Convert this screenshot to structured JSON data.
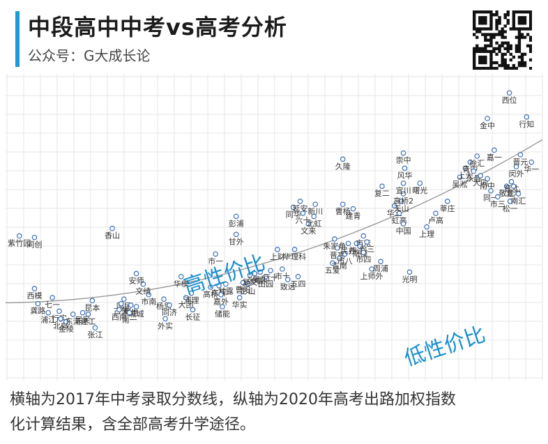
{
  "header": {
    "title": "中段高中中考vs高考分析",
    "subtitle": "公众号：G大成长论"
  },
  "annotations": {
    "high": "高性价比",
    "low": "低性价比"
  },
  "footer": {
    "line1": "横轴为2017年中考录取分数线，纵轴为2020年高考出路加权指数",
    "line2": "化计算结果，含全部高考升学途径。"
  },
  "colors": {
    "accent": "#1a9ad6",
    "point_stroke": "#3d6db5",
    "annotation": "#1a8fcf",
    "trend": "#999999"
  },
  "chart_data": {
    "type": "scatter",
    "trendline": "quadratic",
    "grid": true,
    "points": [
      {
        "x": 20,
        "y": 9.7,
        "label": "紫竹园"
      },
      {
        "x": 42,
        "y": 9.6,
        "label": "同创"
      },
      {
        "x": 155,
        "y": 10.2,
        "label": "香山"
      },
      {
        "x": 42,
        "y": 6.2,
        "label": "西模"
      },
      {
        "x": 68,
        "y": 5.6,
        "label": "七一"
      },
      {
        "x": 47,
        "y": 5.2,
        "label": "龚路"
      },
      {
        "x": 62,
        "y": 4.6,
        "label": "浦江"
      },
      {
        "x": 78,
        "y": 4.7,
        "label": "行实"
      },
      {
        "x": 80,
        "y": 4.2,
        "label": "北郊"
      },
      {
        "x": 88,
        "y": 4.0,
        "label": "金陵"
      },
      {
        "x": 98,
        "y": 4.5,
        "label": "东浦"
      },
      {
        "x": 112,
        "y": 4.6,
        "label": "民民"
      },
      {
        "x": 120,
        "y": 4.5,
        "label": "建工"
      },
      {
        "x": 126,
        "y": 5.4,
        "label": "昆本"
      },
      {
        "x": 130,
        "y": 3.6,
        "label": "张江"
      },
      {
        "x": 172,
        "y": 5.5,
        "label": "国民"
      },
      {
        "x": 168,
        "y": 5.2,
        "label": "古美"
      },
      {
        "x": 182,
        "y": 5.1,
        "label": "曹世"
      },
      {
        "x": 190,
        "y": 5.0,
        "label": "城城"
      },
      {
        "x": 165,
        "y": 4.8,
        "label": "西南"
      },
      {
        "x": 180,
        "y": 4.6,
        "label": "南一"
      },
      {
        "x": 208,
        "y": 5.8,
        "label": "市南"
      },
      {
        "x": 200,
        "y": 6.5,
        "label": "文绮"
      },
      {
        "x": 190,
        "y": 7.2,
        "label": "安师"
      },
      {
        "x": 230,
        "y": 5.5,
        "label": "杨思"
      },
      {
        "x": 238,
        "y": 5.1,
        "label": "同济"
      },
      {
        "x": 232,
        "y": 4.2,
        "label": "外实"
      },
      {
        "x": 255,
        "y": 7.0,
        "label": "华模"
      },
      {
        "x": 262,
        "y": 5.6,
        "label": "大团"
      },
      {
        "x": 270,
        "y": 5.9,
        "label": "浦理"
      },
      {
        "x": 272,
        "y": 4.8,
        "label": "长征"
      },
      {
        "x": 298,
        "y": 6.3,
        "label": "高桥"
      },
      {
        "x": 310,
        "y": 6.4,
        "label": "东辉"
      },
      {
        "x": 320,
        "y": 6.5,
        "label": "甘露"
      },
      {
        "x": 313,
        "y": 5.8,
        "label": "嘉外"
      },
      {
        "x": 315,
        "y": 5.0,
        "label": "储能"
      },
      {
        "x": 340,
        "y": 5.6,
        "label": "华实"
      },
      {
        "x": 345,
        "y": 6.6,
        "label": "曹阳"
      },
      {
        "x": 352,
        "y": 6.5,
        "label": "彭山"
      },
      {
        "x": 355,
        "y": 7.1,
        "label": "复交"
      },
      {
        "x": 362,
        "y": 7.2,
        "label": "张堰"
      },
      {
        "x": 370,
        "y": 7.3,
        "label": "复装"
      },
      {
        "x": 378,
        "y": 7.0,
        "label": "田园"
      },
      {
        "x": 385,
        "y": 7.4,
        "label": "行十"
      },
      {
        "x": 305,
        "y": 8.5,
        "label": "市一"
      },
      {
        "x": 335,
        "y": 9.8,
        "label": "甘外"
      },
      {
        "x": 335,
        "y": 11.0,
        "label": "彭浦"
      },
      {
        "x": 395,
        "y": 8.8,
        "label": "上财"
      },
      {
        "x": 402,
        "y": 7.5,
        "label": "市十"
      },
      {
        "x": 410,
        "y": 6.8,
        "label": "致远"
      },
      {
        "x": 425,
        "y": 7.0,
        "label": "五四"
      },
      {
        "x": 420,
        "y": 8.8,
        "label": "华理科"
      },
      {
        "x": 418,
        "y": 11.6,
        "label": "同华"
      },
      {
        "x": 428,
        "y": 12.0,
        "label": "延安"
      },
      {
        "x": 432,
        "y": 11.2,
        "label": "六十"
      },
      {
        "x": 440,
        "y": 10.5,
        "label": "文来"
      },
      {
        "x": 448,
        "y": 11.0,
        "label": "北虹"
      },
      {
        "x": 450,
        "y": 11.8,
        "label": "新川"
      },
      {
        "x": 478,
        "y": 9.5,
        "label": "朱家角"
      },
      {
        "x": 482,
        "y": 8.9,
        "label": "晋高"
      },
      {
        "x": 475,
        "y": 7.9,
        "label": "五爱"
      },
      {
        "x": 485,
        "y": 8.2,
        "label": "吉南"
      },
      {
        "x": 493,
        "y": 8.5,
        "label": "市八"
      },
      {
        "x": 498,
        "y": 9.2,
        "label": "民办"
      },
      {
        "x": 490,
        "y": 11.8,
        "label": "曹杨"
      },
      {
        "x": 505,
        "y": 11.5,
        "label": "建青"
      },
      {
        "x": 510,
        "y": 9.2,
        "label": "控江"
      },
      {
        "x": 520,
        "y": 9.7,
        "label": "市东"
      },
      {
        "x": 515,
        "y": 9.0,
        "label": "南模"
      },
      {
        "x": 525,
        "y": 9.3,
        "label": "向三"
      },
      {
        "x": 520,
        "y": 8.6,
        "label": "市四"
      },
      {
        "x": 532,
        "y": 7.5,
        "label": "上师外"
      },
      {
        "x": 545,
        "y": 8.0,
        "label": "周浦"
      },
      {
        "x": 490,
        "y": 14.8,
        "label": "久隆"
      },
      {
        "x": 547,
        "y": 13.0,
        "label": "复二"
      },
      {
        "x": 565,
        "y": 11.7,
        "label": "华三"
      },
      {
        "x": 572,
        "y": 11.2,
        "label": "虹高"
      },
      {
        "x": 578,
        "y": 10.5,
        "label": "中国"
      },
      {
        "x": 575,
        "y": 12.0,
        "label": "天山"
      },
      {
        "x": 578,
        "y": 12.5,
        "label": "高桥2"
      },
      {
        "x": 578,
        "y": 13.2,
        "label": "宜川"
      },
      {
        "x": 580,
        "y": 14.2,
        "label": "风华"
      },
      {
        "x": 578,
        "y": 15.2,
        "label": "崇中"
      },
      {
        "x": 587,
        "y": 7.3,
        "label": "光明"
      },
      {
        "x": 602,
        "y": 13.2,
        "label": "曙光"
      },
      {
        "x": 612,
        "y": 10.3,
        "label": "上理"
      },
      {
        "x": 625,
        "y": 11.2,
        "label": "卢高"
      },
      {
        "x": 642,
        "y": 12.0,
        "label": "莘庄"
      },
      {
        "x": 660,
        "y": 13.6,
        "label": "吴淞"
      },
      {
        "x": 668,
        "y": 14.2,
        "label": "上大"
      },
      {
        "x": 675,
        "y": 14.6,
        "label": "青中"
      },
      {
        "x": 680,
        "y": 14.0,
        "label": "东昌"
      },
      {
        "x": 685,
        "y": 15.0,
        "label": "徐汇"
      },
      {
        "x": 690,
        "y": 13.7,
        "label": "大同"
      },
      {
        "x": 700,
        "y": 13.5,
        "label": "南中"
      },
      {
        "x": 705,
        "y": 12.7,
        "label": "同一"
      },
      {
        "x": 710,
        "y": 15.4,
        "label": "嘉一"
      },
      {
        "x": 715,
        "y": 12.3,
        "label": "市三"
      },
      {
        "x": 728,
        "y": 13.0,
        "label": "敬业"
      },
      {
        "x": 735,
        "y": 13.3,
        "label": "育才"
      },
      {
        "x": 738,
        "y": 13.0,
        "label": "北洋"
      },
      {
        "x": 733,
        "y": 12.0,
        "label": "松一"
      },
      {
        "x": 745,
        "y": 12.5,
        "label": "南汇"
      },
      {
        "x": 742,
        "y": 14.3,
        "label": "闵外"
      },
      {
        "x": 748,
        "y": 15.1,
        "label": "晋元"
      },
      {
        "x": 764,
        "y": 14.6,
        "label": "华一"
      },
      {
        "x": 700,
        "y": 17.5,
        "label": "金中"
      },
      {
        "x": 732,
        "y": 19.2,
        "label": "西位"
      },
      {
        "x": 757,
        "y": 17.6,
        "label": "行知"
      }
    ]
  }
}
